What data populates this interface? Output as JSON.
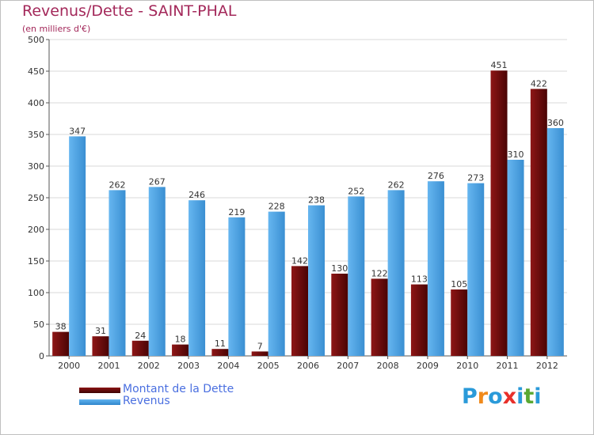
{
  "title": "Revenus/Dette - SAINT-PHAL",
  "subtitle": "(en milliers d'€)",
  "logo": {
    "letters": [
      "P",
      "r",
      "o",
      "x",
      "i",
      "t",
      "i"
    ],
    "colors": [
      "#2a9ad9",
      "#f08a1c",
      "#2a9ad9",
      "#e8302a",
      "#2a9ad9",
      "#5aa832",
      "#2a9ad9"
    ]
  },
  "colors": {
    "dette": "#6e0a0a",
    "revenus": "#4a9fe0",
    "axis_text": "#333333",
    "grid": "#d9d9d9",
    "title": "#a3285a",
    "legend_text": "#4a6fe0"
  },
  "chart_data": {
    "type": "bar",
    "title": "Revenus/Dette - SAINT-PHAL",
    "subtitle": "(en milliers d'€)",
    "xlabel": "",
    "ylabel": "",
    "ylim": [
      0,
      500
    ],
    "yticks": [
      0,
      50,
      100,
      150,
      200,
      250,
      300,
      350,
      400,
      450,
      500
    ],
    "grid": true,
    "legend_position": "bottom-left",
    "categories": [
      "2000",
      "2001",
      "2002",
      "2003",
      "2004",
      "2005",
      "2006",
      "2007",
      "2008",
      "2009",
      "2010",
      "2011",
      "2012"
    ],
    "series": [
      {
        "name": "Montant de la Dette",
        "color": "#6e0a0a",
        "values": [
          38,
          31,
          24,
          18,
          11,
          7,
          142,
          130,
          122,
          113,
          105,
          451,
          422
        ]
      },
      {
        "name": "Revenus",
        "color": "#4a9fe0",
        "values": [
          347,
          262,
          267,
          246,
          219,
          228,
          238,
          252,
          262,
          276,
          273,
          310,
          360
        ]
      }
    ]
  }
}
